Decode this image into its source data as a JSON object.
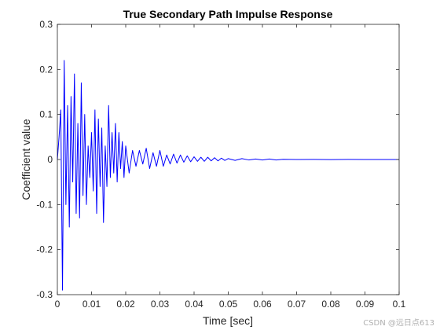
{
  "chart_data": {
    "type": "line",
    "title": "True Secondary Path Impulse Response",
    "xlabel": "Time [sec]",
    "ylabel": "Coefficient value",
    "xlim": [
      0,
      0.1
    ],
    "ylim": [
      -0.3,
      0.3
    ],
    "xticks": [
      0,
      0.01,
      0.02,
      0.03,
      0.04,
      0.05,
      0.06,
      0.07,
      0.08,
      0.09,
      0.1
    ],
    "xtick_labels": [
      "0",
      "0.01",
      "0.02",
      "0.03",
      "0.04",
      "0.05",
      "0.06",
      "0.07",
      "0.08",
      "0.09",
      "0.1"
    ],
    "yticks": [
      -0.3,
      -0.2,
      -0.1,
      0,
      0.1,
      0.2,
      0.3
    ],
    "ytick_labels": [
      "-0.3",
      "-0.2",
      "-0.1",
      "0",
      "0.1",
      "0.2",
      "0.3"
    ],
    "grid": false,
    "line_color": "#0000ff",
    "series": [
      {
        "x": [
          0,
          0.0005,
          0.001,
          0.0015,
          0.002,
          0.0025,
          0.003,
          0.0035,
          0.004,
          0.0045,
          0.005,
          0.0055,
          0.006,
          0.0065,
          0.007,
          0.0075,
          0.008,
          0.0085,
          0.009,
          0.0095,
          0.01,
          0.0105,
          0.011,
          0.0115,
          0.012,
          0.0125,
          0.013,
          0.0135,
          0.014,
          0.0145,
          0.015,
          0.0155,
          0.016,
          0.0165,
          0.017,
          0.0175,
          0.018,
          0.0185,
          0.019,
          0.0195,
          0.02,
          0.021,
          0.022,
          0.023,
          0.024,
          0.025,
          0.026,
          0.027,
          0.028,
          0.029,
          0.03,
          0.031,
          0.032,
          0.033,
          0.034,
          0.035,
          0.036,
          0.037,
          0.038,
          0.039,
          0.04,
          0.041,
          0.042,
          0.043,
          0.044,
          0.045,
          0.046,
          0.047,
          0.048,
          0.049,
          0.05,
          0.052,
          0.054,
          0.056,
          0.058,
          0.06,
          0.062,
          0.064,
          0.066,
          0.07,
          0.075,
          0.08,
          0.085,
          0.09,
          0.095,
          0.1
        ],
        "y": [
          0,
          0.05,
          0.11,
          -0.29,
          0.22,
          -0.1,
          0.12,
          -0.15,
          0.14,
          -0.05,
          0.19,
          -0.12,
          0.08,
          -0.13,
          0.17,
          -0.08,
          0.1,
          -0.1,
          0.03,
          -0.04,
          0.06,
          -0.07,
          0.11,
          -0.12,
          0.09,
          -0.06,
          0.07,
          -0.14,
          0.03,
          -0.06,
          0.12,
          -0.04,
          0.06,
          -0.03,
          0.08,
          -0.05,
          0.06,
          -0.02,
          0.04,
          -0.04,
          0.03,
          -0.03,
          0.02,
          -0.015,
          0.02,
          -0.01,
          0.025,
          -0.02,
          0.015,
          -0.015,
          0.02,
          -0.015,
          0.01,
          -0.01,
          0.012,
          -0.008,
          0.01,
          -0.006,
          0.008,
          -0.005,
          0.006,
          -0.004,
          0.005,
          -0.004,
          0.005,
          -0.003,
          0.004,
          -0.003,
          0.003,
          -0.002,
          0.002,
          -0.002,
          0.002,
          -0.001,
          0.001,
          -0.001,
          0.001,
          -0.001,
          0.0005,
          0,
          0.0003,
          -0.0002,
          0.0002,
          -0.0001,
          0,
          0
        ]
      }
    ]
  },
  "watermark": "CSDN @远日点613"
}
